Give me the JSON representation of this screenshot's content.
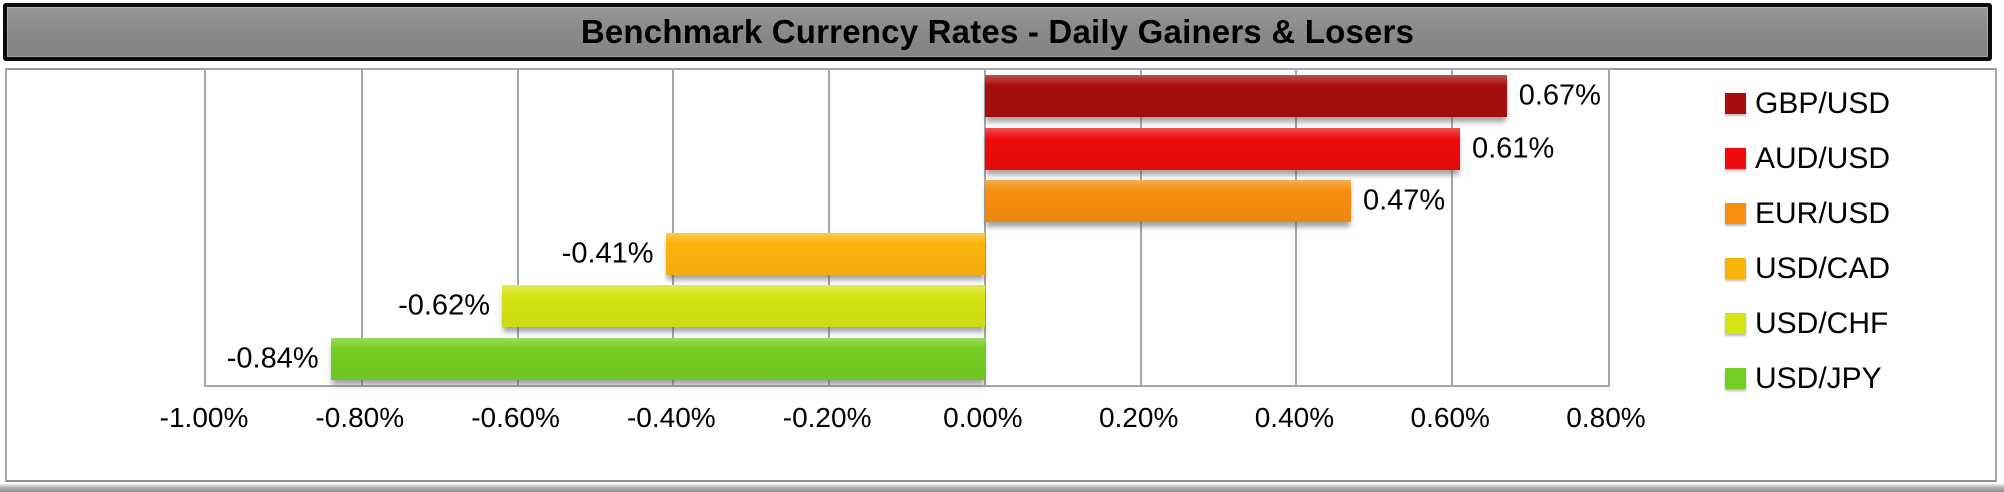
{
  "title": "Benchmark Currency Rates - Daily Gainers & Losers",
  "chart_data": {
    "type": "bar",
    "orientation": "horizontal",
    "title": "Benchmark Currency Rates - Daily Gainers & Losers",
    "series": [
      {
        "name": "GBP/USD",
        "value": 0.67,
        "label": "0.67%",
        "color": "#A80D0D"
      },
      {
        "name": "AUD/USD",
        "value": 0.61,
        "label": "0.61%",
        "color": "#ED0B0B"
      },
      {
        "name": "EUR/USD",
        "value": 0.47,
        "label": "0.47%",
        "color": "#F78E0E"
      },
      {
        "name": "USD/CAD",
        "value": -0.41,
        "label": "-0.41%",
        "color": "#FBB40B"
      },
      {
        "name": "USD/CHF",
        "value": -0.62,
        "label": "-0.62%",
        "color": "#D5E413"
      },
      {
        "name": "USD/JPY",
        "value": -0.84,
        "label": "-0.84%",
        "color": "#74CD22"
      }
    ],
    "x_axis": {
      "min": -1.0,
      "max": 0.8,
      "tick_step": 0.2,
      "tick_labels": [
        "-1.00%",
        "-0.80%",
        "-0.60%",
        "-0.40%",
        "-0.20%",
        "0.00%",
        "0.20%",
        "0.40%",
        "0.60%",
        "0.80%"
      ]
    },
    "legend_position": "right",
    "grid": true
  },
  "colors": {
    "title_bar_bg": "#8A8A8A",
    "title_text": "#000000",
    "grid": "#A6A6A6",
    "plot_border": "#A6A6A6",
    "chart_border": "#A8A8A8",
    "label_text": "#000000"
  }
}
